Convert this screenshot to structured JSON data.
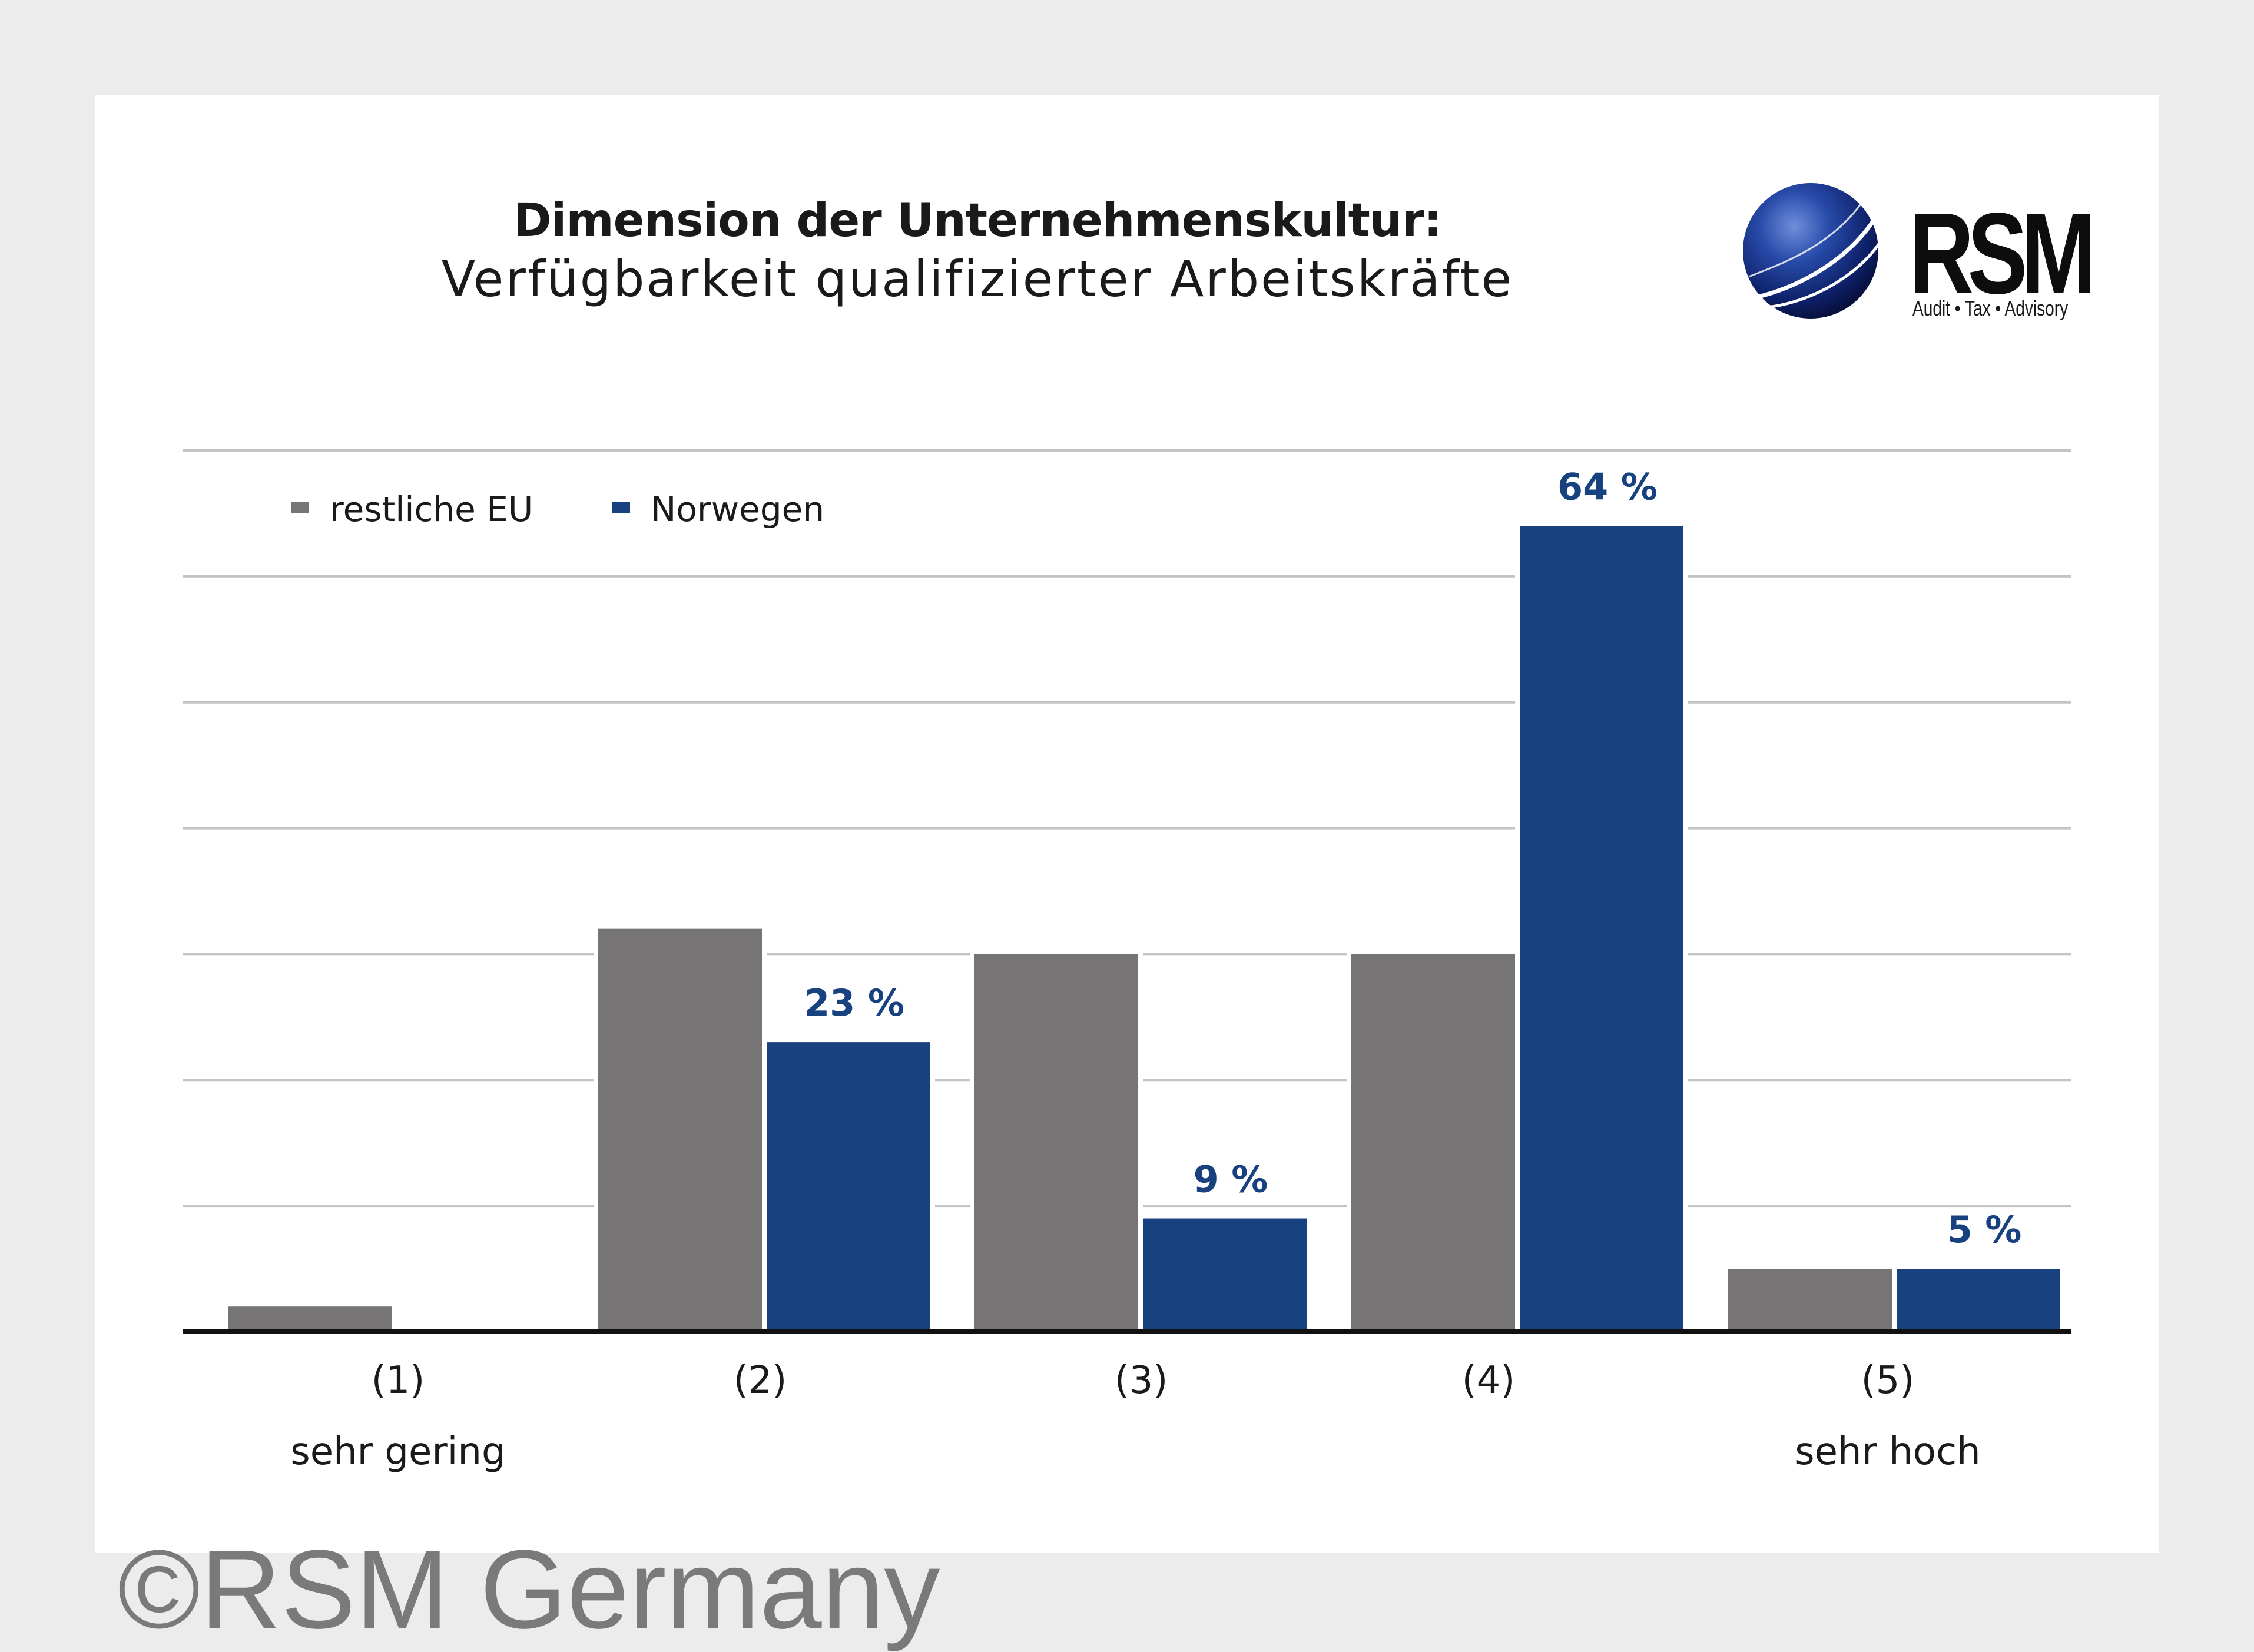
{
  "title": {
    "bold": "Dimension der Unternehmenskultur:",
    "subtitle": "Verfügbarkeit qualifizierter Arbeitskräfte"
  },
  "logo": {
    "text": "RSM",
    "tagline": "Audit • Tax • Advisory"
  },
  "copyright": "©RSM Germany",
  "colors": {
    "eu": "#767474",
    "norway": "#17417f",
    "grid": "#c4c4c4",
    "axis": "#111111",
    "label": "#17417f"
  },
  "chart_data": {
    "type": "bar",
    "title": "Dimension der Unternehmenskultur: Verfügbarkeit qualifizierter Arbeitskräfte",
    "categories": [
      "(1)",
      "(2)",
      "(3)",
      "(4)",
      "(5)"
    ],
    "category_sublabels": [
      "sehr gering",
      "",
      "",
      "",
      "sehr hoch"
    ],
    "ylim": [
      0,
      70
    ],
    "gridlines": [
      10,
      20,
      30,
      40,
      50,
      60,
      70
    ],
    "legend_position": "top-left",
    "series": [
      {
        "name": "restliche EU",
        "values": [
          2,
          32,
          30,
          30,
          5
        ],
        "labels": [
          "",
          "",
          "",
          "",
          ""
        ]
      },
      {
        "name": "Norwegen",
        "values": [
          0,
          23,
          9,
          64,
          5
        ],
        "labels": [
          "",
          "23 %",
          "9 %",
          "64 %",
          "5 %"
        ]
      }
    ]
  }
}
